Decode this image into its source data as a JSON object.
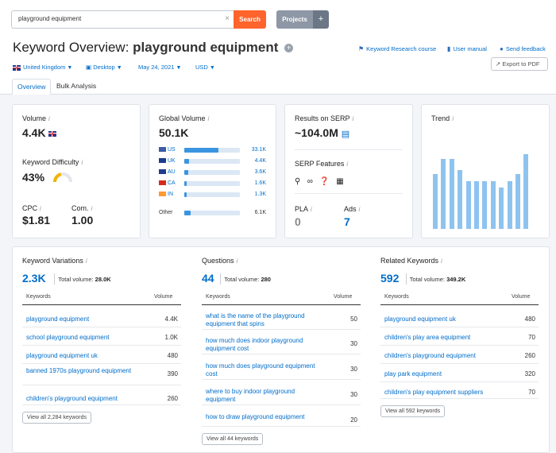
{
  "search": {
    "value": "playground equipment",
    "clear_icon": "×",
    "button": "Search"
  },
  "projects": {
    "label": "Projects",
    "plus": "+"
  },
  "title": {
    "prefix": "Keyword Overview:",
    "keyword": "playground equipment",
    "info_icon": "+"
  },
  "links": {
    "course": "Keyword Research course",
    "manual": "User manual",
    "feedback": "Send feedback"
  },
  "export_label": "Export to PDF",
  "filters": {
    "country": "United Kingdom",
    "device": "Desktop",
    "date": "May 24, 2021",
    "currency": "USD"
  },
  "tabs": [
    "Overview",
    "Bulk Analysis"
  ],
  "volume": {
    "label": "Volume",
    "value": "4.4K"
  },
  "kd": {
    "label": "Keyword Difficulty",
    "value": "43%",
    "percent": 43
  },
  "cpc": {
    "label": "CPC",
    "value": "$1.81"
  },
  "com": {
    "label": "Com.",
    "value": "1.00"
  },
  "global": {
    "label": "Global Volume",
    "value": "50.1K",
    "countries": [
      {
        "code": "US",
        "value": "33.1K",
        "share": 0.62
      },
      {
        "code": "UK",
        "value": "4.4K",
        "share": 0.08
      },
      {
        "code": "AU",
        "value": "3.6K",
        "share": 0.07
      },
      {
        "code": "CA",
        "value": "1.6K",
        "share": 0.04
      },
      {
        "code": "IN",
        "value": "1.3K",
        "share": 0.03
      }
    ],
    "other": {
      "label": "Other",
      "value": "6.1K",
      "share": 0.11
    }
  },
  "serp": {
    "label": "Results on SERP",
    "value": "~104.0M",
    "features_label": "SERP Features"
  },
  "pla": {
    "label": "PLA",
    "value": "0"
  },
  "ads": {
    "label": "Ads",
    "value": "7"
  },
  "trend": {
    "label": "Trend",
    "values": [
      0.62,
      0.79,
      0.79,
      0.66,
      0.54,
      0.54,
      0.54,
      0.54,
      0.46,
      0.54,
      0.62,
      0.84
    ]
  },
  "variations": {
    "title": "Keyword Variations",
    "count": "2.3K",
    "total_label": "Total volume:",
    "total": "28.0K",
    "col_kw": "Keywords",
    "col_vol": "Volume",
    "rows": [
      {
        "kw": "playground equipment",
        "vol": "4.4K"
      },
      {
        "kw": "school playground equipment",
        "vol": "1.0K"
      },
      {
        "kw": "playground equipment uk",
        "vol": "480"
      },
      {
        "kw": "banned 1970s playground equipment",
        "vol": "390"
      },
      {
        "kw": "children's playground equipment",
        "vol": "260"
      }
    ],
    "view_all": "View all 2,284 keywords"
  },
  "questions": {
    "title": "Questions",
    "count": "44",
    "total_label": "Total volume:",
    "total": "280",
    "col_kw": "Keywords",
    "col_vol": "Volume",
    "rows": [
      {
        "kw": "what is the name of the playground equipment that spins",
        "vol": "50"
      },
      {
        "kw": "how much does indoor playground equipment cost",
        "vol": "30"
      },
      {
        "kw": "how much does playground equipment cost",
        "vol": "30"
      },
      {
        "kw": "where to buy indoor playground equipment",
        "vol": "30"
      },
      {
        "kw": "how to draw playground equipment",
        "vol": "20"
      }
    ],
    "view_all": "View all 44 keywords"
  },
  "related": {
    "title": "Related Keywords",
    "count": "592",
    "total_label": "Total volume:",
    "total": "349.2K",
    "col_kw": "Keywords",
    "col_vol": "Volume",
    "rows": [
      {
        "kw": "playground equipment uk",
        "vol": "480"
      },
      {
        "kw": "children's play area equipment",
        "vol": "70"
      },
      {
        "kw": "children's playground equipment",
        "vol": "260"
      },
      {
        "kw": "play park equipment",
        "vol": "320"
      },
      {
        "kw": "children's play equipment suppliers",
        "vol": "70"
      }
    ],
    "view_all": "View all 592 keywords"
  },
  "info_mark": "i"
}
